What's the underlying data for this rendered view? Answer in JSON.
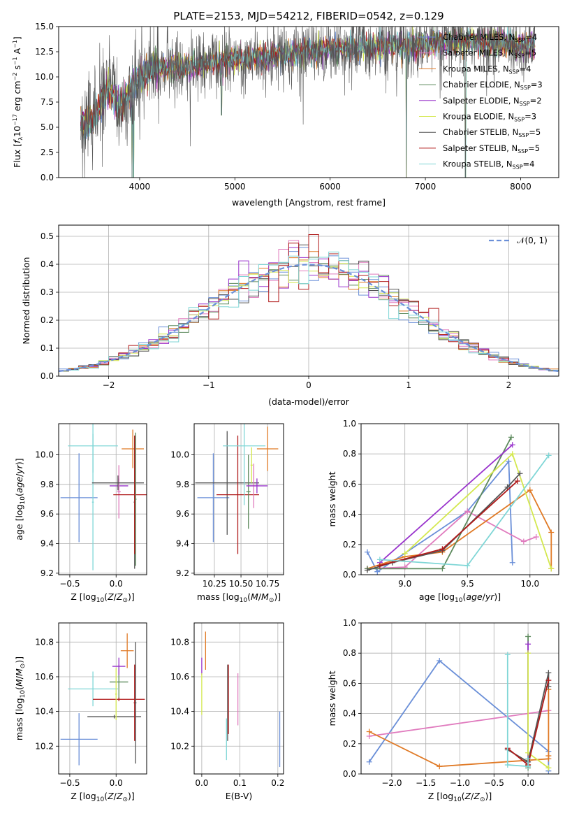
{
  "figure_title": "PLATE=2153, MJD=54212, FIBERID=0542, z=0.129",
  "colors": {
    "chabrier_miles": "#6a8fd8",
    "salpeter_miles": "#e07bbe",
    "kroupa_miles": "#e07a26",
    "chabrier_elodie": "#5d8a5d",
    "salpeter_elodie": "#9933cc",
    "kroupa_elodie": "#d4e84f",
    "chabrier_stelib": "#555555",
    "salpeter_stelib": "#b01a1a",
    "kroupa_stelib": "#7fd6d6",
    "gaussian": "#6a8fd8"
  },
  "chart_data": [
    {
      "id": "spectrum",
      "type": "line",
      "title": "PLATE=2153, MJD=54212, FIBERID=0542, z=0.129",
      "xlabel": "wavelength [Angstrom, rest frame]",
      "ylabel_parts": [
        "Flux [f",
        "λ",
        "10",
        "−17",
        " erg cm",
        "−2",
        " s",
        "−1",
        " A",
        "−1",
        "]"
      ],
      "xlim": [
        3150,
        8400
      ],
      "ylim": [
        0,
        15
      ],
      "xticks": [
        4000,
        5000,
        6000,
        7000,
        8000
      ],
      "yticks": [
        "0.0",
        "2.5",
        "5.0",
        "7.5",
        "10.0",
        "12.5",
        "15.0"
      ],
      "legend_position": "upper right",
      "legend": [
        {
          "label": "Chabrier MILES, N",
          "sub": "SSP",
          "value": "=4",
          "color": "#6a8fd8"
        },
        {
          "label": "Salpeter MILES, N",
          "sub": "SSP",
          "value": "=5",
          "color": "#e07bbe"
        },
        {
          "label": "Kroupa MILES, N",
          "sub": "SSP",
          "value": "=4",
          "color": "#e07a26"
        },
        {
          "label": "Chabrier ELODIE, N",
          "sub": "SSP",
          "value": "=3",
          "color": "#5d8a5d"
        },
        {
          "label": "Salpeter ELODIE, N",
          "sub": "SSP",
          "value": "=2",
          "color": "#9933cc"
        },
        {
          "label": "Kroupa ELODIE, N",
          "sub": "SSP",
          "value": "=3",
          "color": "#d4e84f"
        },
        {
          "label": "Chabrier STELIB, N",
          "sub": "SSP",
          "value": "=5",
          "color": "#555555"
        },
        {
          "label": "Salpeter STELIB, N",
          "sub": "SSP",
          "value": "=5",
          "color": "#b01a1a"
        },
        {
          "label": "Kroupa STELIB, N",
          "sub": "SSP",
          "value": "=4",
          "color": "#7fd6d6"
        }
      ],
      "data_range_x": [
        3380,
        8150
      ],
      "continuum": [
        [
          3380,
          5.2
        ],
        [
          3550,
          6.2
        ],
        [
          3650,
          9.0
        ],
        [
          3800,
          7.0
        ],
        [
          3950,
          9.5
        ],
        [
          4100,
          10.8
        ],
        [
          4500,
          11.0
        ],
        [
          5000,
          11.7
        ],
        [
          5500,
          12.2
        ],
        [
          6000,
          12.8
        ],
        [
          6500,
          13.0
        ],
        [
          7000,
          13.2
        ],
        [
          7500,
          13.5
        ],
        [
          8000,
          13.2
        ],
        [
          8150,
          13.3
        ]
      ],
      "drops": [
        [
          3920,
          0.0
        ],
        [
          3935,
          0.0
        ],
        [
          4861,
          6.2
        ],
        [
          6800,
          0.0
        ],
        [
          7420,
          0.0
        ]
      ]
    },
    {
      "id": "residuals",
      "type": "histogram",
      "xlabel": "(data-model)/error",
      "ylabel": "Normed distribution",
      "xlim": [
        -2.5,
        2.5
      ],
      "ylim": [
        0,
        0.54
      ],
      "xticks": [
        "−2",
        "−1",
        "0",
        "1",
        "2"
      ],
      "yticks": [
        "0.0",
        "0.1",
        "0.2",
        "0.3",
        "0.4",
        "0.5"
      ],
      "bin_width": 0.1,
      "reference_curve": "gaussian N(0,1)",
      "legend": [
        {
          "label": "𝒩(0, 1)",
          "color": "#6a8fd8",
          "dashed": true
        }
      ],
      "legend_position": "upper right"
    },
    {
      "id": "age_vs_Z",
      "type": "scatter",
      "xlabel": "Z [log10(Z/Z⊙)]",
      "ylabel": "age [log10(age/yr)]",
      "xlim": [
        -0.62,
        0.33
      ],
      "ylim": [
        9.19,
        10.21
      ],
      "xticks": [
        "−0.5",
        "0.0"
      ],
      "yticks": [
        "9.2",
        "9.4",
        "9.6",
        "9.8",
        "10.0"
      ],
      "points": [
        {
          "x": -0.4,
          "y": 9.71,
          "xerr": 0.2,
          "yerr": 0.3,
          "color": "#6a8fd8"
        },
        {
          "x": -0.25,
          "y": 10.06,
          "xerr": 0.27,
          "yerr": 0.18,
          "color": "#7fd6d6"
        },
        {
          "x": -0.25,
          "y": 9.68,
          "xerr": 0.01,
          "yerr": 0.46,
          "color": "#7fd6d6"
        },
        {
          "x": 0.18,
          "y": 10.04,
          "xerr": 0.12,
          "yerr": 0.13,
          "color": "#e07a26"
        },
        {
          "x": 0.03,
          "y": 9.79,
          "xerr": 0.1,
          "yerr": 0.05,
          "color": "#9933cc"
        },
        {
          "x": 0.03,
          "y": 9.75,
          "xerr": 0.02,
          "yerr": 0.18,
          "color": "#e07bbe"
        },
        {
          "x": 0.02,
          "y": 9.81,
          "xerr": 0.28,
          "yerr": 0.05,
          "color": "#555555"
        },
        {
          "x": 0.2,
          "y": 9.68,
          "xerr": 0.01,
          "yerr": 0.45,
          "color": "#555555"
        },
        {
          "x": 0.2,
          "y": 9.73,
          "xerr": 0.23,
          "yerr": 0.4,
          "color": "#b01a1a"
        },
        {
          "x": 0.21,
          "y": 9.7,
          "xerr": 0.01,
          "yerr": 0.45,
          "color": "#5d8a5d"
        }
      ]
    },
    {
      "id": "age_vs_mass",
      "type": "scatter",
      "xlabel": "mass [log10(M/M⊙)]",
      "xlim": [
        10.06,
        10.9
      ],
      "ylim": [
        9.19,
        10.21
      ],
      "xticks": [
        "10.25",
        "10.50",
        "10.75"
      ],
      "yticks": [
        "9.2",
        "9.4",
        "9.6",
        "9.8",
        "10.0"
      ],
      "points": [
        {
          "x": 10.24,
          "y": 9.71,
          "xerr": 0.15,
          "yerr": 0.3,
          "color": "#6a8fd8"
        },
        {
          "x": 10.37,
          "y": 9.81,
          "xerr": 0.3,
          "yerr": 0.35,
          "color": "#555555"
        },
        {
          "x": 10.47,
          "y": 9.73,
          "xerr": 0.2,
          "yerr": 0.4,
          "color": "#b01a1a"
        },
        {
          "x": 10.53,
          "y": 10.06,
          "xerr": 0.2,
          "yerr": 0.4,
          "color": "#7fd6d6"
        },
        {
          "x": 10.57,
          "y": 9.75,
          "xerr": 0.02,
          "yerr": 0.25,
          "color": "#5d8a5d"
        },
        {
          "x": 10.62,
          "y": 9.79,
          "xerr": 0.05,
          "yerr": 0.15,
          "color": "#e07bbe"
        },
        {
          "x": 10.65,
          "y": 9.79,
          "xerr": 0.1,
          "yerr": 0.05,
          "color": "#9933cc"
        },
        {
          "x": 10.75,
          "y": 10.04,
          "xerr": 0.1,
          "yerr": 0.15,
          "color": "#e07a26"
        },
        {
          "x": 10.6,
          "y": 9.93,
          "xerr": 0.01,
          "yerr": 0.12,
          "color": "#d4e84f"
        }
      ]
    },
    {
      "id": "weight_vs_age",
      "type": "line",
      "xlabel": "age [log10(age/yr)]",
      "ylabel": "mass weight",
      "xlim": [
        8.65,
        10.23
      ],
      "ylim": [
        0,
        1
      ],
      "xticks": [
        "9.0",
        "9.5",
        "10.0"
      ],
      "yticks": [
        "0.0",
        "0.2",
        "0.4",
        "0.6",
        "0.8",
        "1.0"
      ],
      "series": [
        {
          "color": "#6a8fd8",
          "x": [
            8.7,
            8.78,
            9.5,
            9.83,
            9.86
          ],
          "y": [
            0.15,
            0.02,
            0.42,
            0.75,
            0.08
          ]
        },
        {
          "color": "#e07bbe",
          "x": [
            8.7,
            9.0,
            9.5,
            9.95,
            10.05
          ],
          "y": [
            0.04,
            0.05,
            0.42,
            0.22,
            0.25
          ]
        },
        {
          "color": "#e07a26",
          "x": [
            8.7,
            9.0,
            9.3,
            10.0,
            10.17,
            10.17
          ],
          "y": [
            0.04,
            0.12,
            0.15,
            0.56,
            0.28,
            0.04
          ]
        },
        {
          "color": "#5d8a5d",
          "x": [
            8.7,
            9.3,
            9.85
          ],
          "y": [
            0.04,
            0.04,
            0.91
          ]
        },
        {
          "color": "#9933cc",
          "x": [
            8.8,
            9.86
          ],
          "y": [
            0.08,
            0.86
          ]
        },
        {
          "color": "#d4e84f",
          "x": [
            9.0,
            9.86,
            10.17
          ],
          "y": [
            0.14,
            0.8,
            0.04
          ]
        },
        {
          "color": "#555555",
          "x": [
            8.7,
            8.9,
            9.3,
            9.82,
            9.92
          ],
          "y": [
            0.03,
            0.08,
            0.16,
            0.58,
            0.67
          ]
        },
        {
          "color": "#b01a1a",
          "x": [
            8.8,
            9.3,
            9.9
          ],
          "y": [
            0.06,
            0.17,
            0.62
          ]
        },
        {
          "color": "#7fd6d6",
          "x": [
            8.8,
            9.5,
            10.15
          ],
          "y": [
            0.1,
            0.06,
            0.79
          ]
        }
      ]
    },
    {
      "id": "mass_vs_Z",
      "type": "scatter",
      "xlabel": "Z [log10(Z/Z⊙)]",
      "ylabel": "mass [log10(M/M⊙)]",
      "xlim": [
        -0.62,
        0.33
      ],
      "ylim": [
        10.04,
        10.91
      ],
      "xticks": [
        "−0.5",
        "0.0"
      ],
      "yticks": [
        "10.2",
        "10.4",
        "10.6",
        "10.8"
      ],
      "points": [
        {
          "x": -0.4,
          "y": 10.24,
          "xerr": 0.2,
          "yerr": 0.15,
          "color": "#6a8fd8"
        },
        {
          "x": -0.25,
          "y": 10.53,
          "xerr": 0.27,
          "yerr": 0.1,
          "color": "#7fd6d6"
        },
        {
          "x": -0.02,
          "y": 10.37,
          "xerr": 0.29,
          "yerr": 0.01,
          "color": "#555555"
        },
        {
          "x": 0.03,
          "y": 10.57,
          "xerr": 0.1,
          "yerr": 0.1,
          "color": "#5d8a5d"
        },
        {
          "x": 0.03,
          "y": 10.47,
          "xerr": 0.28,
          "yerr": 0.01,
          "color": "#b01a1a"
        },
        {
          "x": 0.03,
          "y": 10.66,
          "xerr": 0.07,
          "yerr": 0.05,
          "color": "#9933cc"
        },
        {
          "x": 0.12,
          "y": 10.75,
          "xerr": 0.07,
          "yerr": 0.1,
          "color": "#e07a26"
        },
        {
          "x": 0.2,
          "y": 10.45,
          "xerr": 0.01,
          "yerr": 0.22,
          "color": "#b01a1a"
        },
        {
          "x": 0.21,
          "y": 10.45,
          "xerr": 0.01,
          "yerr": 0.35,
          "color": "#555555"
        },
        {
          "x": 0.0,
          "y": 10.5,
          "xerr": 0.01,
          "yerr": 0.15,
          "color": "#d4e84f"
        }
      ]
    },
    {
      "id": "mass_vs_EBV",
      "type": "scatter",
      "xlabel": "E(B-V)",
      "xlim": [
        -0.02,
        0.215
      ],
      "ylim": [
        10.04,
        10.91
      ],
      "xticks": [
        "0.0",
        "0.1",
        "0.2"
      ],
      "yticks": [
        "10.2",
        "10.4",
        "10.6",
        "10.8"
      ],
      "points": [
        {
          "x": 0.0,
          "y": 10.66,
          "xerr": 0,
          "yerr": 0.05,
          "color": "#9933cc"
        },
        {
          "x": 0.0,
          "y": 10.5,
          "xerr": 0,
          "yerr": 0.12,
          "color": "#d4e84f"
        },
        {
          "x": 0.01,
          "y": 10.75,
          "xerr": 0,
          "yerr": 0.11,
          "color": "#e07a26"
        },
        {
          "x": 0.065,
          "y": 10.24,
          "xerr": 0,
          "yerr": 0.12,
          "color": "#7fd6d6"
        },
        {
          "x": 0.068,
          "y": 10.45,
          "xerr": 0,
          "yerr": 0.22,
          "color": "#555555"
        },
        {
          "x": 0.07,
          "y": 10.47,
          "xerr": 0,
          "yerr": 0.2,
          "color": "#b01a1a"
        },
        {
          "x": 0.095,
          "y": 10.47,
          "xerr": 0,
          "yerr": 0.15,
          "color": "#e07bbe"
        },
        {
          "x": 0.205,
          "y": 10.24,
          "xerr": 0,
          "yerr": 0.16,
          "color": "#6a8fd8"
        }
      ]
    },
    {
      "id": "weight_vs_Z",
      "type": "line",
      "xlabel": "Z [log10(Z/Z⊙)]",
      "ylabel": "mass weight",
      "xlim": [
        -2.45,
        0.45
      ],
      "ylim": [
        0,
        1
      ],
      "xticks": [
        "−2.0",
        "−1.5",
        "−1.0",
        "−0.5",
        "0.0"
      ],
      "yticks": [
        "0.0",
        "0.2",
        "0.4",
        "0.6",
        "0.8",
        "1.0"
      ],
      "series": [
        {
          "color": "#6a8fd8",
          "x": [
            -2.33,
            -1.3,
            0.3,
            0.3
          ],
          "y": [
            0.08,
            0.75,
            0.15,
            0.02
          ]
        },
        {
          "color": "#e07bbe",
          "x": [
            -2.33,
            0.3
          ],
          "y": [
            0.25,
            0.42
          ]
        },
        {
          "color": "#e07a26",
          "x": [
            -2.33,
            -1.3,
            0.3,
            0.3,
            0.3
          ],
          "y": [
            0.28,
            0.05,
            0.1,
            0.56,
            0.12
          ]
        },
        {
          "color": "#5d8a5d",
          "x": [
            0.0,
            0.0,
            0.0
          ],
          "y": [
            0.91,
            0.04,
            0.06
          ]
        },
        {
          "color": "#9933cc",
          "x": [
            0.0,
            0.0
          ],
          "y": [
            0.86,
            0.08
          ]
        },
        {
          "color": "#d4e84f",
          "x": [
            0.0,
            0.0,
            0.3,
            0.3
          ],
          "y": [
            0.8,
            0.14,
            0.04,
            0.04
          ]
        },
        {
          "color": "#555555",
          "x": [
            -0.3,
            0.0,
            0.3,
            0.3
          ],
          "y": [
            0.16,
            0.08,
            0.67,
            0.58
          ]
        },
        {
          "color": "#b01a1a",
          "x": [
            -0.3,
            0.0,
            0.3
          ],
          "y": [
            0.17,
            0.06,
            0.62
          ]
        },
        {
          "color": "#7fd6d6",
          "x": [
            -0.3,
            -0.3,
            0.0,
            0.0
          ],
          "y": [
            0.79,
            0.06,
            0.05,
            0.1
          ]
        }
      ]
    }
  ]
}
